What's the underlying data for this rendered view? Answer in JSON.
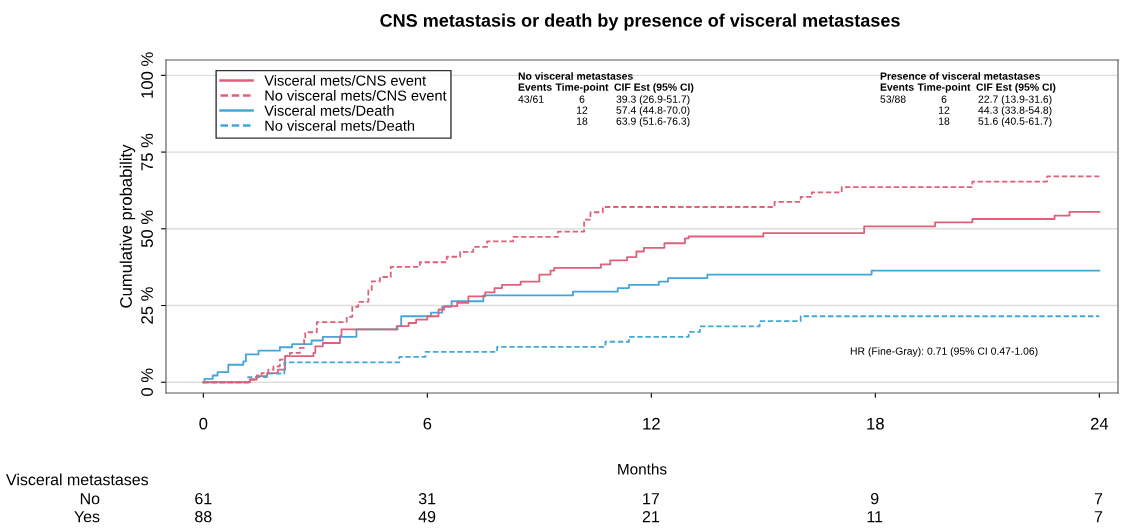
{
  "chart_data": {
    "type": "step",
    "title": "CNS metastasis or death by presence of visceral metastases",
    "xlabel": "Months",
    "ylabel": "Cumulative probability",
    "xlim": [
      -1,
      24.5
    ],
    "xticks": [
      0,
      6,
      12,
      18,
      24
    ],
    "ylim": [
      -3.5,
      105
    ],
    "yticks": [
      {
        "value": 0,
        "label": "0 %"
      },
      {
        "value": 25,
        "label": "25 %"
      },
      {
        "value": 50,
        "label": "50 %"
      },
      {
        "value": 75,
        "label": "75 %"
      },
      {
        "value": 100,
        "label": "100 %"
      }
    ],
    "grid": "y",
    "legend": "top left",
    "series": [
      {
        "name": "Visceral mets/CNS event",
        "color": "#e0607a",
        "line_style": "solid",
        "x": [
          0,
          1.25,
          1.43,
          1.71,
          2.0,
          2.19,
          2.95,
          3.0,
          3.2,
          3.66,
          3.7,
          5.18,
          5.5,
          5.7,
          6.0,
          6.3,
          6.45,
          6.8,
          7.1,
          7.55,
          7.8,
          8.0,
          8.5,
          9.0,
          9.3,
          9.4,
          10.65,
          10.9,
          11.35,
          11.6,
          11.8,
          12.35,
          12.9,
          13.0,
          15.0,
          17.7,
          19.6,
          20.6,
          22.8,
          23.2,
          24
        ],
        "values": [
          0,
          0.9,
          2.0,
          3.0,
          4.1,
          8.5,
          9.6,
          11.7,
          12.8,
          15.0,
          17.2,
          18.3,
          19.3,
          20.4,
          21.5,
          23.7,
          24.8,
          25.9,
          28.0,
          29.3,
          30.7,
          31.7,
          32.8,
          35.1,
          36.4,
          37.3,
          38.4,
          39.7,
          40.8,
          42.6,
          43.8,
          45.3,
          46.9,
          47.5,
          48.6,
          50.8,
          52.1,
          53.2,
          54.3,
          55.5,
          55.5
        ]
      },
      {
        "name": "No visceral mets/CNS event",
        "color": "#e0607a",
        "line_style": "dashed",
        "x": [
          0,
          1.25,
          1.43,
          1.56,
          1.74,
          1.88,
          2.05,
          2.19,
          2.32,
          2.59,
          2.7,
          2.73,
          3.04,
          3.84,
          3.99,
          4.15,
          4.42,
          4.51,
          4.73,
          5.02,
          5.8,
          6.52,
          6.88,
          7.23,
          7.6,
          8.3,
          9.5,
          10.2,
          10.37,
          10.7,
          15.3,
          16.0,
          16.3,
          17.1,
          20.6,
          22.6,
          24
        ],
        "values": [
          0,
          0.9,
          2.2,
          3.0,
          4.1,
          5.2,
          7.4,
          8.5,
          9.6,
          11.2,
          13.9,
          16.3,
          19.6,
          21.3,
          24.6,
          26.2,
          30.0,
          32.9,
          34.3,
          37.6,
          39.1,
          40.9,
          42.5,
          44.1,
          45.9,
          47.4,
          49.1,
          53.0,
          55.4,
          57.1,
          58.8,
          60.4,
          61.9,
          63.6,
          65.4,
          67.1,
          67.1
        ]
      },
      {
        "name": "Visceral mets/Death",
        "color": "#44a6d8",
        "line_style": "solid",
        "x": [
          0,
          0.03,
          0.25,
          0.38,
          0.67,
          1.07,
          1.14,
          1.48,
          2.05,
          2.38,
          2.9,
          3.2,
          4.1,
          5.2,
          5.3,
          6.1,
          6.4,
          6.65,
          7.5,
          9.9,
          11.1,
          11.4,
          12.2,
          12.45,
          13.5,
          17.9,
          24
        ],
        "values": [
          0,
          1.1,
          2.2,
          3.3,
          5.7,
          6.8,
          9.1,
          10.3,
          11.4,
          12.4,
          13.6,
          14.8,
          17.2,
          18.3,
          21.5,
          22.7,
          24.6,
          26.4,
          28.3,
          29.5,
          30.7,
          31.7,
          32.8,
          33.9,
          35.1,
          36.4,
          36.4
        ]
      },
      {
        "name": "No visceral mets/Death",
        "color": "#44a6d8",
        "line_style": "dashed",
        "x": [
          0,
          1.2,
          1.7,
          2.17,
          5.25,
          5.95,
          7.87,
          10.77,
          11.4,
          13.0,
          13.3,
          14.9,
          16.0,
          24
        ],
        "values": [
          0,
          1.7,
          2.8,
          6.5,
          8.3,
          9.9,
          11.5,
          13.2,
          14.8,
          16.4,
          18.2,
          19.9,
          21.5,
          21.5
        ]
      }
    ],
    "annotations": [
      "No visceral metastases",
      "Events",
      "Time-point",
      "CIF Est (95% CI)",
      "43/61",
      "6",
      "39.3 (26.9-51.7)",
      "12",
      "57.4 (44.8-70.0)",
      "18",
      "63.9 (51.6-76.3)",
      "Presence of visceral metastases",
      "Events",
      "Time-point",
      "CIF Est (95% CI)",
      "53/88",
      "6",
      "22.7 (13.9-31.6)",
      "12",
      "44.3 (33.8-54.8)",
      "18",
      "51.6 (40.5-61.7)",
      "HR (Fine-Gray): 0.71 (95% CI 0.47-1.06)",
      "Visceral metastases",
      "No",
      "61",
      "31",
      "17",
      "9",
      "7",
      "Yes",
      "88",
      "49",
      "21",
      "11",
      "7"
    ]
  }
}
